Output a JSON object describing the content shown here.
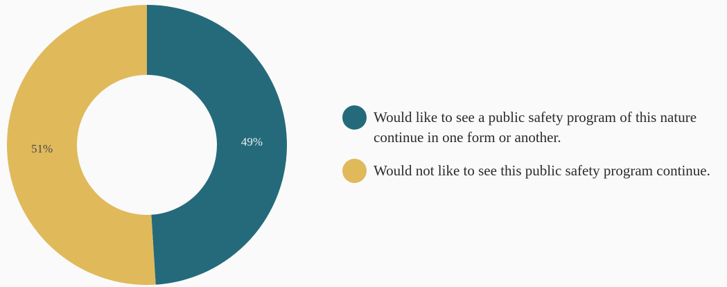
{
  "chart_data": {
    "type": "pie",
    "donut": true,
    "title": "",
    "series": [
      {
        "name": "Would like to see a public safety program of this nature continue in one form or another.",
        "value": 49,
        "label": "49%",
        "color": "#256a7a"
      },
      {
        "name": "Would not like to see this public safety program continue.",
        "value": 51,
        "label": "51%",
        "color": "#e0b95b"
      }
    ],
    "legend_position": "right"
  }
}
